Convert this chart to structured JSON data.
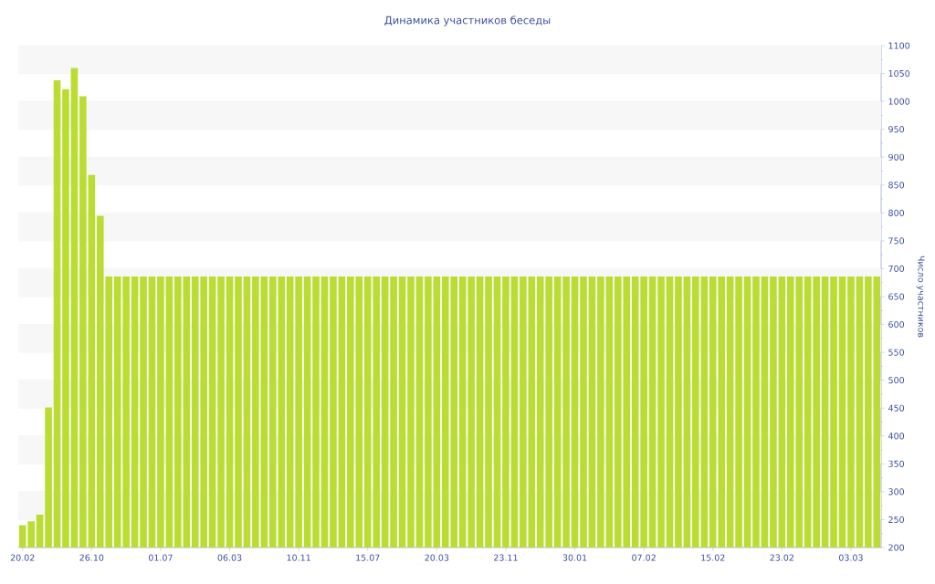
{
  "chart_data": {
    "type": "bar",
    "title": "Динамика участников беседы",
    "ylabel": "Число участников",
    "categories": [
      "20.02",
      null,
      null,
      null,
      null,
      null,
      null,
      null,
      "26.10",
      null,
      null,
      null,
      null,
      null,
      null,
      null,
      "01.07",
      null,
      null,
      null,
      null,
      null,
      null,
      null,
      "06.03",
      null,
      null,
      null,
      null,
      null,
      null,
      null,
      "10.11",
      null,
      null,
      null,
      null,
      null,
      null,
      null,
      "15.07",
      null,
      null,
      null,
      null,
      null,
      null,
      null,
      "20.03",
      null,
      null,
      null,
      null,
      null,
      null,
      null,
      "23.11",
      null,
      null,
      null,
      null,
      null,
      null,
      null,
      "30.01",
      null,
      null,
      null,
      null,
      null,
      null,
      null,
      "07.02",
      null,
      null,
      null,
      null,
      null,
      null,
      null,
      "15.02",
      null,
      null,
      null,
      null,
      null,
      null,
      null,
      "23.02",
      null,
      null,
      null,
      null,
      null,
      null,
      null,
      "03.03",
      null,
      null,
      null
    ],
    "values": [
      240,
      247,
      259,
      451,
      1038,
      1022,
      1060,
      1009,
      868,
      795,
      686,
      686,
      686,
      686,
      686,
      686,
      686,
      686,
      686,
      686,
      686,
      686,
      686,
      686,
      686,
      686,
      686,
      686,
      686,
      686,
      686,
      686,
      686,
      686,
      686,
      686,
      686,
      686,
      686,
      686,
      686,
      686,
      686,
      686,
      686,
      686,
      686,
      686,
      686,
      686,
      686,
      686,
      686,
      686,
      686,
      686,
      686,
      686,
      686,
      686,
      686,
      686,
      686,
      686,
      686,
      686,
      686,
      686,
      686,
      686,
      686,
      686,
      686,
      686,
      686,
      686,
      686,
      686,
      686,
      686,
      686,
      686,
      686,
      686,
      686,
      686,
      686,
      686,
      686,
      686,
      686,
      686,
      686,
      686,
      686,
      686,
      686,
      686,
      686,
      686
    ],
    "color": "#bbdd33",
    "ylim": [
      200,
      1100
    ],
    "yticks": [
      200,
      250,
      300,
      350,
      400,
      450,
      500,
      550,
      600,
      650,
      700,
      750,
      800,
      850,
      900,
      950,
      1000,
      1050,
      1100
    ],
    "grid": "y"
  }
}
